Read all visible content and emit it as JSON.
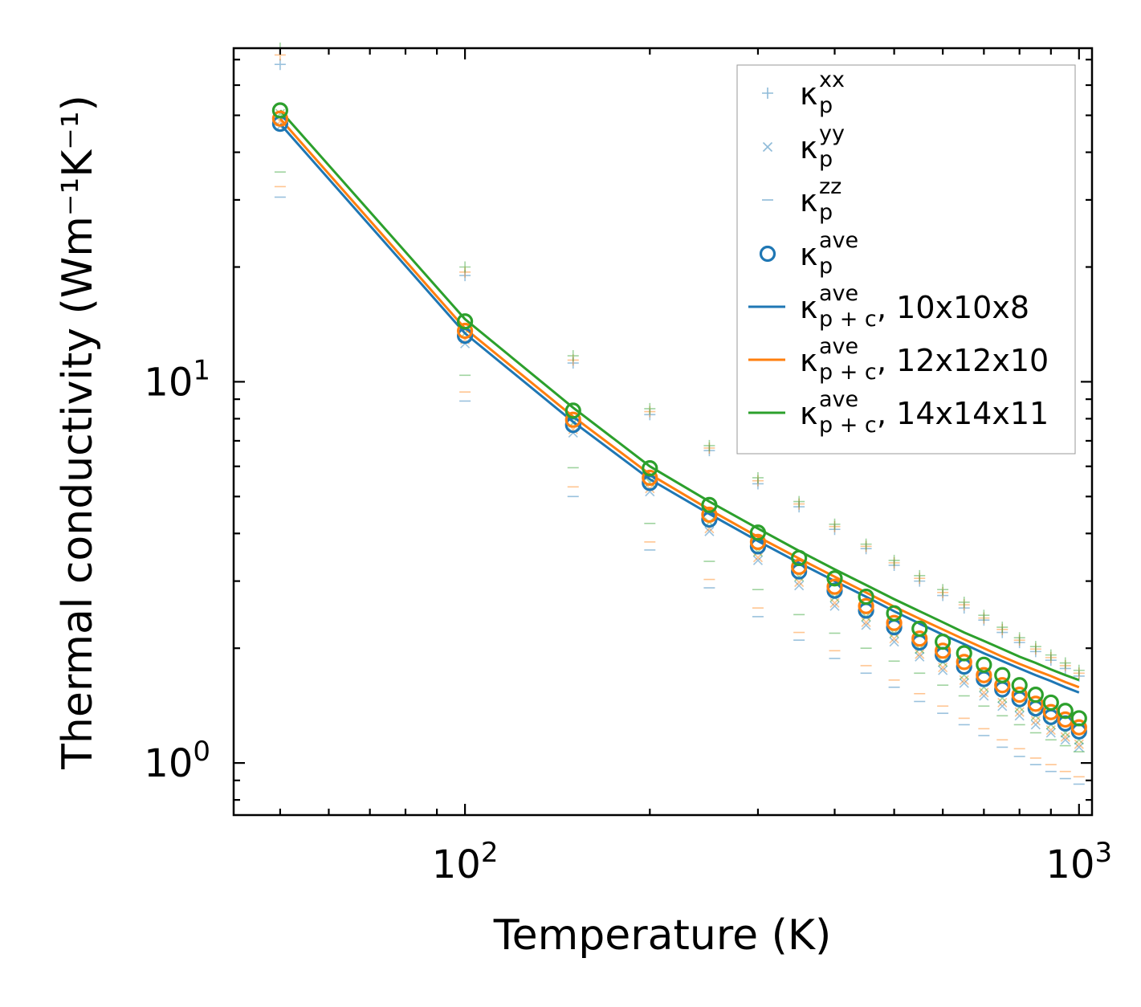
{
  "chart_data": {
    "type": "scatter",
    "xlabel": "Temperature (K)",
    "ylabel": "Thermal conductivity (Wm⁻¹K⁻¹)",
    "xscale": "log",
    "yscale": "log",
    "xlim": [
      42,
      1050
    ],
    "ylim": [
      0.73,
      75
    ],
    "x_ticks": [
      {
        "value": 100,
        "base": "10",
        "exp": "2"
      },
      {
        "value": 1000,
        "base": "10",
        "exp": "3"
      }
    ],
    "y_ticks": [
      {
        "value": 1,
        "base": "10",
        "exp": "0"
      },
      {
        "value": 10,
        "base": "10",
        "exp": "1"
      }
    ],
    "legend_position": "top-right",
    "colors": {
      "blue": "#1f77b4",
      "orange": "#ff7f0e",
      "green": "#2ca02c"
    },
    "temperatures": [
      50,
      100,
      150,
      200,
      250,
      300,
      350,
      400,
      450,
      500,
      550,
      600,
      650,
      700,
      750,
      800,
      850,
      900,
      950,
      1000
    ],
    "ave_series": [
      {
        "name": "10x10x8",
        "color": "#1f77b4",
        "values": [
          47.5,
          13.2,
          7.7,
          5.43,
          4.35,
          3.7,
          3.18,
          2.83,
          2.51,
          2.27,
          2.07,
          1.92,
          1.79,
          1.66,
          1.56,
          1.47,
          1.39,
          1.32,
          1.27,
          1.21
        ]
      },
      {
        "name": "12x12x10",
        "color": "#ff7f0e",
        "values": [
          49.0,
          13.6,
          7.95,
          5.6,
          4.48,
          3.8,
          3.27,
          2.9,
          2.58,
          2.33,
          2.12,
          1.97,
          1.84,
          1.7,
          1.6,
          1.51,
          1.43,
          1.36,
          1.3,
          1.24
        ]
      },
      {
        "name": "14x14x11",
        "color": "#2ca02c",
        "values": [
          51.5,
          14.4,
          8.4,
          5.93,
          4.75,
          4.02,
          3.45,
          3.05,
          2.73,
          2.47,
          2.25,
          2.08,
          1.94,
          1.81,
          1.7,
          1.6,
          1.51,
          1.44,
          1.37,
          1.31
        ]
      }
    ],
    "xx_series": [
      {
        "name": "10x10x8",
        "color": "#1f77b4",
        "values": [
          68,
          19.0,
          11.2,
          8.2,
          6.6,
          5.4,
          4.7,
          4.1,
          3.65,
          3.3,
          3.0,
          2.75,
          2.55,
          2.37,
          2.2,
          2.07,
          1.96,
          1.86,
          1.77,
          1.69
        ]
      },
      {
        "name": "12x12x10",
        "color": "#ff7f0e",
        "values": [
          72,
          19.4,
          11.4,
          8.35,
          6.7,
          5.5,
          4.78,
          4.17,
          3.7,
          3.35,
          3.05,
          2.8,
          2.6,
          2.4,
          2.24,
          2.1,
          1.99,
          1.89,
          1.8,
          1.72
        ]
      },
      {
        "name": "14x14x11",
        "color": "#2ca02c",
        "values": [
          75,
          20.0,
          11.7,
          8.5,
          6.8,
          5.6,
          4.85,
          4.23,
          3.75,
          3.4,
          3.1,
          2.85,
          2.64,
          2.44,
          2.27,
          2.13,
          2.02,
          1.92,
          1.83,
          1.75
        ]
      }
    ],
    "yy_series": [
      {
        "name": "10x10x8",
        "color": "#1f77b4",
        "values": [
          46.8,
          12.6,
          7.35,
          5.15,
          4.05,
          3.4,
          2.92,
          2.58,
          2.3,
          2.08,
          1.9,
          1.75,
          1.62,
          1.5,
          1.41,
          1.33,
          1.26,
          1.2,
          1.15,
          1.1
        ]
      },
      {
        "name": "12x12x10",
        "color": "#ff7f0e",
        "values": [
          48.2,
          12.9,
          7.5,
          5.25,
          4.12,
          3.46,
          2.98,
          2.63,
          2.34,
          2.12,
          1.93,
          1.78,
          1.65,
          1.53,
          1.44,
          1.36,
          1.29,
          1.22,
          1.17,
          1.12
        ]
      },
      {
        "name": "14x14x11",
        "color": "#2ca02c",
        "values": [
          50.5,
          13.4,
          7.8,
          5.45,
          4.28,
          3.58,
          3.08,
          2.72,
          2.42,
          2.19,
          1.99,
          1.84,
          1.7,
          1.58,
          1.48,
          1.4,
          1.33,
          1.26,
          1.2,
          1.15
        ]
      }
    ],
    "zz_series": [
      {
        "name": "10x10x8",
        "color": "#1f77b4",
        "values": [
          30.5,
          8.9,
          5.0,
          3.62,
          2.88,
          2.42,
          2.1,
          1.88,
          1.72,
          1.58,
          1.45,
          1.35,
          1.26,
          1.18,
          1.1,
          1.04,
          0.99,
          0.95,
          0.91,
          0.88
        ]
      },
      {
        "name": "12x12x10",
        "color": "#ff7f0e",
        "values": [
          32.5,
          9.4,
          5.3,
          3.8,
          3.03,
          2.55,
          2.2,
          1.97,
          1.8,
          1.65,
          1.52,
          1.41,
          1.31,
          1.23,
          1.15,
          1.09,
          1.03,
          0.99,
          0.95,
          0.92
        ]
      },
      {
        "name": "14x14x11",
        "color": "#2ca02c",
        "values": [
          35.5,
          10.4,
          5.95,
          4.25,
          3.38,
          2.85,
          2.45,
          2.19,
          2.0,
          1.85,
          1.72,
          1.6,
          1.5,
          1.41,
          1.33,
          1.26,
          1.2,
          1.15,
          1.11,
          1.07
        ]
      }
    ],
    "line_series": [
      {
        "name": "10x10x8",
        "color": "#1f77b4",
        "values": [
          47.5,
          13.4,
          7.85,
          5.55,
          4.5,
          3.82,
          3.35,
          3.0,
          2.73,
          2.5,
          2.32,
          2.17,
          2.05,
          1.94,
          1.85,
          1.77,
          1.7,
          1.64,
          1.58,
          1.53
        ]
      },
      {
        "name": "12x12x10",
        "color": "#ff7f0e",
        "values": [
          49.0,
          13.8,
          8.1,
          5.72,
          4.62,
          3.92,
          3.44,
          3.08,
          2.8,
          2.57,
          2.39,
          2.24,
          2.11,
          2.0,
          1.9,
          1.82,
          1.75,
          1.69,
          1.63,
          1.58
        ]
      },
      {
        "name": "14x14x11",
        "color": "#2ca02c",
        "values": [
          51.5,
          14.6,
          8.55,
          6.0,
          4.85,
          4.12,
          3.6,
          3.22,
          2.93,
          2.69,
          2.5,
          2.34,
          2.2,
          2.09,
          1.99,
          1.9,
          1.83,
          1.76,
          1.7,
          1.65
        ]
      }
    ],
    "legend": [
      {
        "kind": "plus",
        "color": "#1f77b4",
        "base": "κ",
        "sup": "xx",
        "sub": "p",
        "suffix": ""
      },
      {
        "kind": "cross",
        "color": "#1f77b4",
        "base": "κ",
        "sup": "yy",
        "sub": "p",
        "suffix": ""
      },
      {
        "kind": "dash",
        "color": "#1f77b4",
        "base": "κ",
        "sup": "zz",
        "sub": "p",
        "suffix": ""
      },
      {
        "kind": "circle",
        "color": "#1f77b4",
        "base": "κ",
        "sup": "ave",
        "sub": "p",
        "suffix": ""
      },
      {
        "kind": "line",
        "color": "#1f77b4",
        "base": "κ",
        "sup": "ave",
        "sub": "p + c",
        "suffix": ", 10x10x8"
      },
      {
        "kind": "line",
        "color": "#ff7f0e",
        "base": "κ",
        "sup": "ave",
        "sub": "p + c",
        "suffix": ", 12x12x10"
      },
      {
        "kind": "line",
        "color": "#2ca02c",
        "base": "κ",
        "sup": "ave",
        "sub": "p + c",
        "suffix": ", 14x14x11"
      }
    ]
  }
}
